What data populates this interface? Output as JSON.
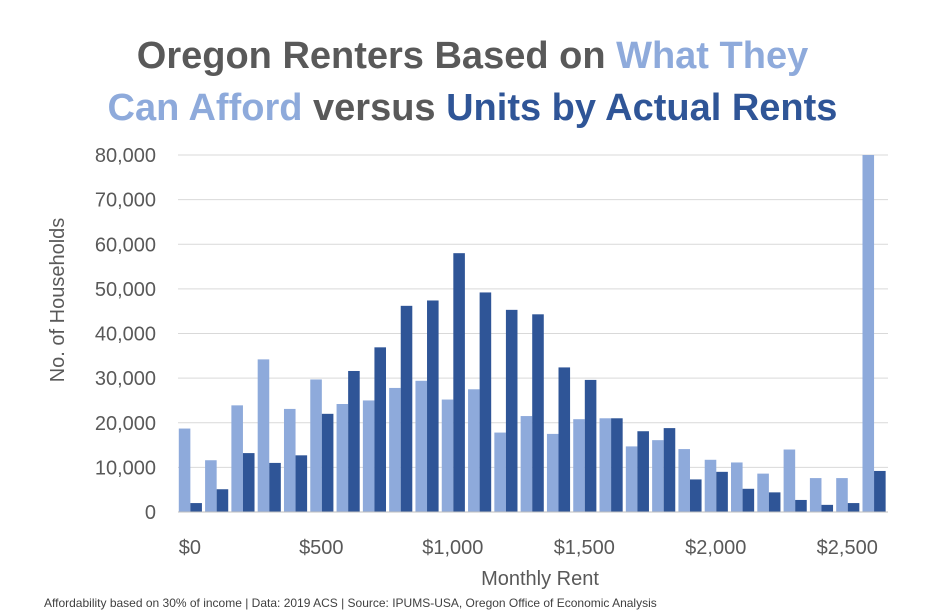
{
  "title": {
    "line1_part1": "Oregon Renters Based on ",
    "line1_part2": "What They",
    "line2_part1": "Can Afford",
    "line2_part2": " versus ",
    "line2_part3": "Units by Actual Rents"
  },
  "footnote": "Affordability based on 30% of income  |  Data: 2019 ACS | Source: IPUMS-USA, Oregon Office of Economic Analysis",
  "colors": {
    "afford": "#8eaadb",
    "actual": "#2f5597",
    "grid": "#d9d9d9",
    "text": "#595959"
  },
  "chart_data": {
    "type": "bar",
    "xlabel": "Monthly Rent",
    "ylabel": "No. of Households",
    "ylim": [
      0,
      80000
    ],
    "yticks": [
      "0",
      "10,000",
      "20,000",
      "30,000",
      "40,000",
      "50,000",
      "60,000",
      "70,000",
      "80,000"
    ],
    "xtick_labels": [
      {
        "label": "$0",
        "bin_index": 0
      },
      {
        "label": "$500",
        "bin_index": 5
      },
      {
        "label": "$1,000",
        "bin_index": 10
      },
      {
        "label": "$1,500",
        "bin_index": 15
      },
      {
        "label": "$2,000",
        "bin_index": 20
      },
      {
        "label": "$2,500",
        "bin_index": 25
      }
    ],
    "grid": true,
    "legend": "none",
    "series": [
      {
        "key": "afford",
        "values": [
          18700,
          11600,
          23900,
          34200,
          23100,
          29700,
          24200,
          25000,
          27800,
          29400,
          25200,
          27500,
          17800,
          21500,
          17500,
          20800,
          21000,
          14700,
          16100,
          14100,
          11700,
          11100,
          8600,
          14000,
          7600,
          7600,
          80000
        ]
      },
      {
        "key": "actual",
        "values": [
          2000,
          5100,
          13200,
          11000,
          12700,
          22000,
          31600,
          36900,
          46200,
          47400,
          58000,
          49200,
          45300,
          44300,
          32400,
          29600,
          21000,
          18100,
          18800,
          7300,
          9000,
          5200,
          4400,
          2700,
          1600,
          2000,
          9200
        ]
      }
    ]
  }
}
